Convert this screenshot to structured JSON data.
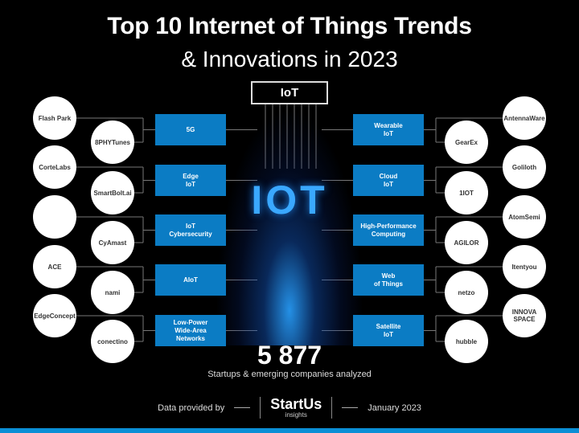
{
  "title": {
    "line1": "Top 10 Internet of Things Trends",
    "line2": "& Innovations in 2023"
  },
  "hub_label": "IoT",
  "center_graphic": "IOT",
  "left_trends": [
    {
      "label": "5G",
      "startups": [
        "Flash Park",
        "8PHYTunes"
      ]
    },
    {
      "label": "Edge\nIoT",
      "startups": [
        "CorteLabs",
        "SmartBolt.ai"
      ]
    },
    {
      "label": "IoT\nCybersecurity",
      "startups": [
        "",
        "CyAmast"
      ]
    },
    {
      "label": "AIoT",
      "startups": [
        "ACE",
        "nami"
      ]
    },
    {
      "label": "Low-Power\nWide-Area\nNetworks",
      "startups": [
        "EdgeConcept",
        "conectino"
      ]
    }
  ],
  "right_trends": [
    {
      "label": "Wearable\nIoT",
      "startups": [
        "AntennaWare",
        "GearEx"
      ]
    },
    {
      "label": "Cloud\nIoT",
      "startups": [
        "Goliloth",
        "1IOT"
      ]
    },
    {
      "label": "High-Performance\nComputing",
      "startups": [
        "AtomSemi",
        "AGILOR"
      ]
    },
    {
      "label": "Web\nof Things",
      "startups": [
        "Itentyou",
        "netzo"
      ]
    },
    {
      "label": "Satellite\nIoT",
      "startups": [
        "INNOVA SPACE",
        "hubble"
      ]
    }
  ],
  "stats": {
    "count": "5 877",
    "caption": "Startups & emerging companies analyzed"
  },
  "footer": {
    "provided_by": "Data provided by",
    "logo_main": "StartUs",
    "logo_sub": "insights",
    "date": "January 2023"
  },
  "colors": {
    "accent": "#0b7cc4",
    "background": "#000000"
  }
}
